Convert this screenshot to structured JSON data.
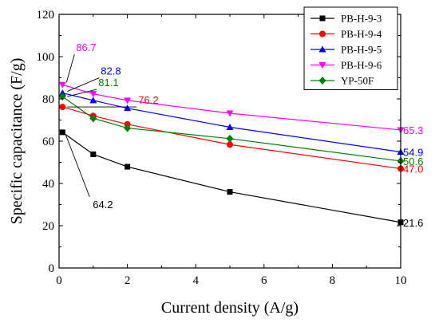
{
  "chart_data": {
    "type": "line",
    "xlabel": "Current density (A/g)",
    "ylabel": "Specific capacitance (F/g)",
    "xlim": [
      0,
      10
    ],
    "ylim": [
      0,
      120
    ],
    "xticks": [
      "0",
      "2",
      "4",
      "6",
      "8",
      "10"
    ],
    "yticks": [
      "0",
      "20",
      "40",
      "60",
      "80",
      "100",
      "120"
    ],
    "grid": false,
    "legend_position": "top-right",
    "x": [
      0.1,
      1,
      2,
      5,
      10
    ],
    "series": [
      {
        "name": "PB-H-9-3",
        "color": "#000000",
        "marker": "square",
        "values": [
          64.2,
          53.8,
          47.9,
          36.0,
          21.6
        ]
      },
      {
        "name": "PB-H-9-4",
        "color": "#ff0000",
        "marker": "circle",
        "values": [
          76.2,
          72.0,
          68.0,
          58.4,
          47.0
        ]
      },
      {
        "name": "PB-H-9-5",
        "color": "#0000ff",
        "marker": "triangle-up",
        "values": [
          82.8,
          79.3,
          75.6,
          66.6,
          54.9
        ]
      },
      {
        "name": "PB-H-9-6",
        "color": "#ff00ff",
        "marker": "triangle-down",
        "values": [
          86.7,
          82.4,
          79.3,
          73.2,
          65.3
        ]
      },
      {
        "name": "YP-50F",
        "color": "#008000",
        "marker": "diamond",
        "values": [
          81.1,
          70.8,
          66.2,
          61.2,
          50.6
        ]
      }
    ],
    "annotations": [
      {
        "text": "86.7",
        "color": "#ff00ff",
        "at": [
          0.1,
          86.7
        ]
      },
      {
        "text": "82.8",
        "color": "#0000ff",
        "at": [
          0.1,
          82.8
        ]
      },
      {
        "text": "81.1",
        "color": "#008000",
        "at": [
          0.1,
          81.1
        ]
      },
      {
        "text": "76.2",
        "color": "#ff0000",
        "at": [
          0.1,
          76.2
        ]
      },
      {
        "text": "64.2",
        "color": "#000000",
        "at": [
          0.1,
          64.2
        ]
      },
      {
        "text": "65.3",
        "color": "#ff00ff",
        "at": [
          10,
          65.3
        ]
      },
      {
        "text": "54.9",
        "color": "#0000ff",
        "at": [
          10,
          54.9
        ]
      },
      {
        "text": "50.6",
        "color": "#008000",
        "at": [
          10,
          50.6
        ]
      },
      {
        "text": "47.0",
        "color": "#ff0000",
        "at": [
          10,
          47.0
        ]
      },
      {
        "text": "21.6",
        "color": "#000000",
        "at": [
          10,
          21.6
        ]
      }
    ]
  }
}
